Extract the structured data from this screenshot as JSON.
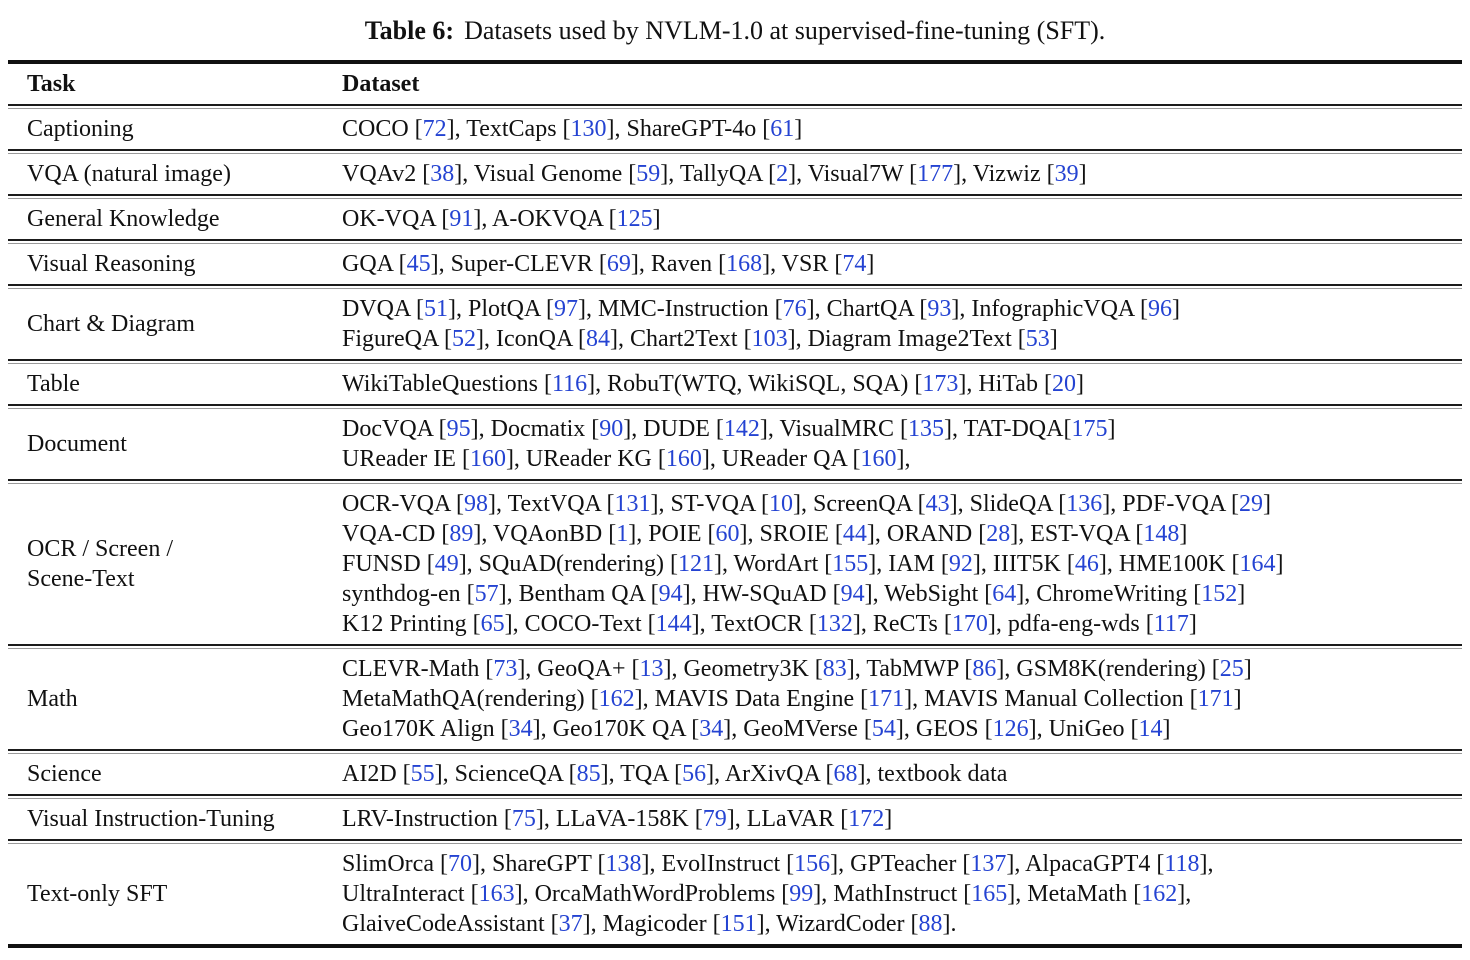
{
  "caption": {
    "label": "Table 6:",
    "text": "Datasets used by NVLM-1.0 at supervised-fine-tuning (SFT)."
  },
  "columns": [
    "Task",
    "Dataset"
  ],
  "colors": {
    "citation_link": "#2443d2",
    "text": "#111111",
    "rule": "#111111"
  },
  "rows": [
    {
      "task_lines": [
        "Captioning"
      ],
      "dataset_lines": [
        "COCO [72], TextCaps [130], ShareGPT-4o [61]"
      ]
    },
    {
      "task_lines": [
        "VQA (natural image)"
      ],
      "dataset_lines": [
        "VQAv2 [38], Visual Genome [59], TallyQA [2], Visual7W [177], Vizwiz [39]"
      ]
    },
    {
      "task_lines": [
        "General Knowledge"
      ],
      "dataset_lines": [
        "OK-VQA [91], A-OKVQA [125]"
      ]
    },
    {
      "task_lines": [
        "Visual Reasoning"
      ],
      "dataset_lines": [
        "GQA [45], Super-CLEVR [69], Raven [168], VSR [74]"
      ]
    },
    {
      "task_lines": [
        "Chart & Diagram"
      ],
      "dataset_lines": [
        "DVQA [51], PlotQA [97], MMC-Instruction [76], ChartQA [93], InfographicVQA [96]",
        "FigureQA [52], IconQA [84], Chart2Text [103], Diagram Image2Text [53]"
      ]
    },
    {
      "task_lines": [
        "Table"
      ],
      "dataset_lines": [
        "WikiTableQuestions [116], RobuT(WTQ, WikiSQL, SQA) [173], HiTab [20]"
      ]
    },
    {
      "task_lines": [
        "Document"
      ],
      "dataset_lines": [
        "DocVQA [95], Docmatix [90], DUDE [142], VisualMRC [135], TAT-DQA[175]",
        "UReader IE [160], UReader KG [160], UReader QA [160],"
      ]
    },
    {
      "task_lines": [
        "OCR / Screen /",
        "Scene-Text"
      ],
      "dataset_lines": [
        "OCR-VQA [98], TextVQA [131], ST-VQA [10], ScreenQA [43], SlideQA [136], PDF-VQA [29]",
        "VQA-CD [89], VQAonBD [1], POIE [60], SROIE [44], ORAND [28], EST-VQA [148]",
        "FUNSD [49], SQuAD(rendering) [121], WordArt [155], IAM [92], IIIT5K [46], HME100K [164]",
        "synthdog-en [57], Bentham QA [94], HW-SQuAD [94], WebSight [64], ChromeWriting [152]",
        "K12 Printing [65], COCO-Text [144], TextOCR [132], ReCTs [170], pdfa-eng-wds [117]"
      ]
    },
    {
      "task_lines": [
        "Math"
      ],
      "dataset_lines": [
        "CLEVR-Math [73], GeoQA+ [13], Geometry3K [83], TabMWP [86], GSM8K(rendering) [25]",
        "MetaMathQA(rendering) [162], MAVIS Data Engine [171], MAVIS Manual Collection [171]",
        "Geo170K Align [34], Geo170K QA [34], GeoMVerse [54], GEOS [126], UniGeo [14]"
      ]
    },
    {
      "task_lines": [
        "Science"
      ],
      "dataset_lines": [
        "AI2D [55], ScienceQA [85], TQA [56], ArXivQA [68], textbook data"
      ]
    },
    {
      "task_lines": [
        "Visual Instruction-Tuning"
      ],
      "dataset_lines": [
        "LRV-Instruction [75], LLaVA-158K [79], LLaVAR [172]"
      ]
    },
    {
      "task_lines": [
        "Text-only SFT"
      ],
      "dataset_lines": [
        "SlimOrca [70], ShareGPT [138], EvolInstruct [156], GPTeacher [137], AlpacaGPT4 [118],",
        "UltraInteract [163], OrcaMathWordProblems [99], MathInstruct [165], MetaMath [162],",
        "GlaiveCodeAssistant [37], Magicoder [151], WizardCoder [88]."
      ]
    }
  ]
}
